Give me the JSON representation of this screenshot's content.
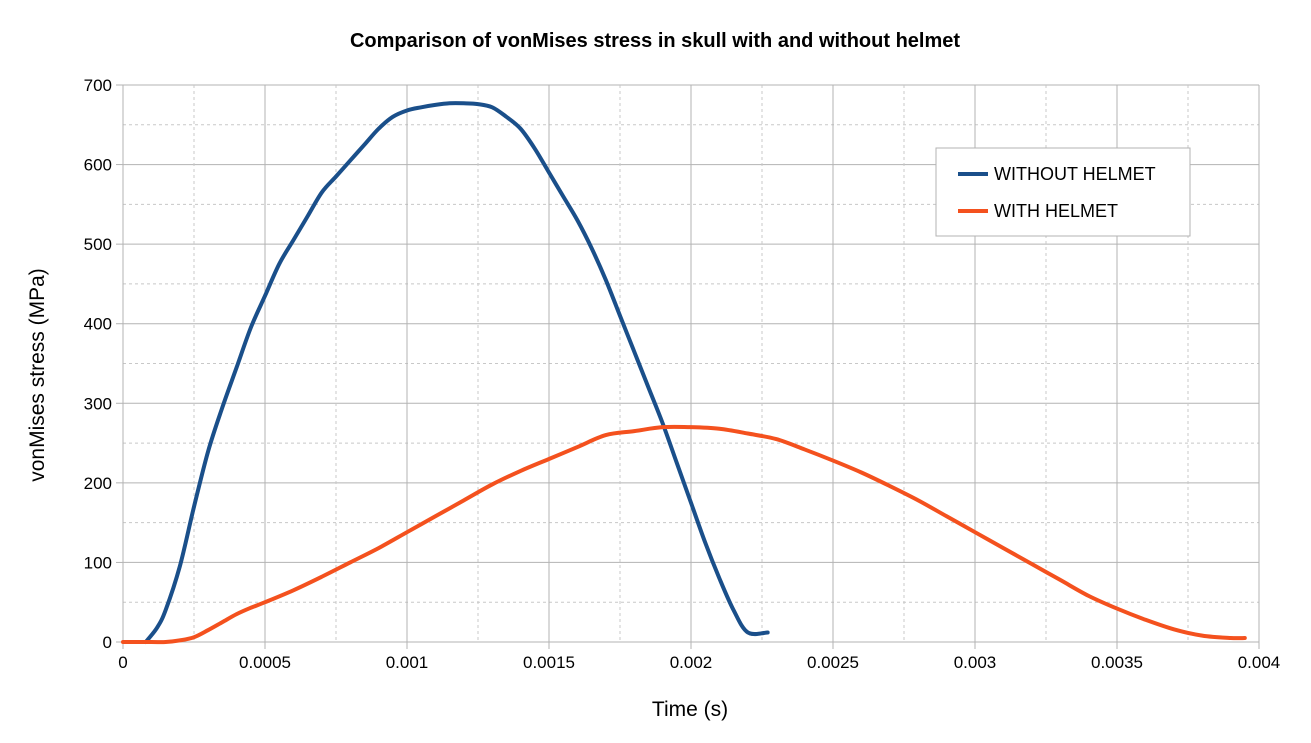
{
  "chart_data": {
    "type": "line",
    "title": "Comparison of vonMises stress in skull with and without helmet",
    "xlabel": "Time (s)",
    "ylabel": "vonMises stress (MPa)",
    "xlim": [
      0,
      0.004
    ],
    "ylim": [
      0,
      700
    ],
    "x_ticks": [
      "0",
      "0.0005",
      "0.001",
      "0.0015",
      "0.002",
      "0.0025",
      "0.003",
      "0.0035",
      "0.004"
    ],
    "y_ticks": [
      "0",
      "100",
      "200",
      "300",
      "400",
      "500",
      "600",
      "700"
    ],
    "grid": true,
    "legend_position": "top-right",
    "series": [
      {
        "name": "WITHOUT HELMET",
        "color": "#1a4f8a",
        "x": [
          8e-05,
          0.00012,
          0.00015,
          0.0002,
          0.00025,
          0.0003,
          0.00035,
          0.0004,
          0.00045,
          0.0005,
          0.00055,
          0.0006,
          0.00065,
          0.0007,
          0.00075,
          0.0008,
          0.00085,
          0.0009,
          0.00095,
          0.001,
          0.00105,
          0.0011,
          0.00115,
          0.0012,
          0.00125,
          0.0013,
          0.00135,
          0.0014,
          0.00145,
          0.0015,
          0.00155,
          0.0016,
          0.00165,
          0.0017,
          0.00175,
          0.0018,
          0.00185,
          0.0019,
          0.00195,
          0.002,
          0.00205,
          0.0021,
          0.00215,
          0.0022,
          0.00227
        ],
        "values": [
          0,
          18,
          40,
          95,
          170,
          240,
          295,
          345,
          395,
          435,
          475,
          505,
          535,
          565,
          585,
          605,
          625,
          645,
          660,
          668,
          672,
          675,
          677,
          677,
          676,
          672,
          660,
          645,
          620,
          590,
          560,
          530,
          495,
          455,
          410,
          365,
          320,
          275,
          225,
          175,
          125,
          80,
          40,
          12,
          12
        ]
      },
      {
        "name": "WITH HELMET",
        "color": "#f4511e",
        "x": [
          0,
          0.0001,
          0.00015,
          0.0002,
          0.00025,
          0.0003,
          0.00035,
          0.0004,
          0.00045,
          0.0005,
          0.0006,
          0.0007,
          0.0008,
          0.0009,
          0.001,
          0.0011,
          0.0012,
          0.0013,
          0.0014,
          0.0015,
          0.0016,
          0.0017,
          0.0018,
          0.0019,
          0.002,
          0.0021,
          0.0022,
          0.0023,
          0.0024,
          0.0025,
          0.0026,
          0.0027,
          0.0028,
          0.0029,
          0.003,
          0.0031,
          0.0032,
          0.0033,
          0.0034,
          0.0035,
          0.0036,
          0.0037,
          0.0038,
          0.0039,
          0.00395
        ],
        "values": [
          0,
          0,
          0,
          2,
          6,
          15,
          25,
          35,
          43,
          50,
          65,
          82,
          100,
          118,
          138,
          158,
          178,
          198,
          215,
          230,
          245,
          260,
          265,
          270,
          270,
          268,
          262,
          255,
          242,
          228,
          213,
          196,
          178,
          158,
          138,
          118,
          98,
          78,
          58,
          42,
          28,
          16,
          8,
          5,
          5
        ]
      }
    ]
  }
}
